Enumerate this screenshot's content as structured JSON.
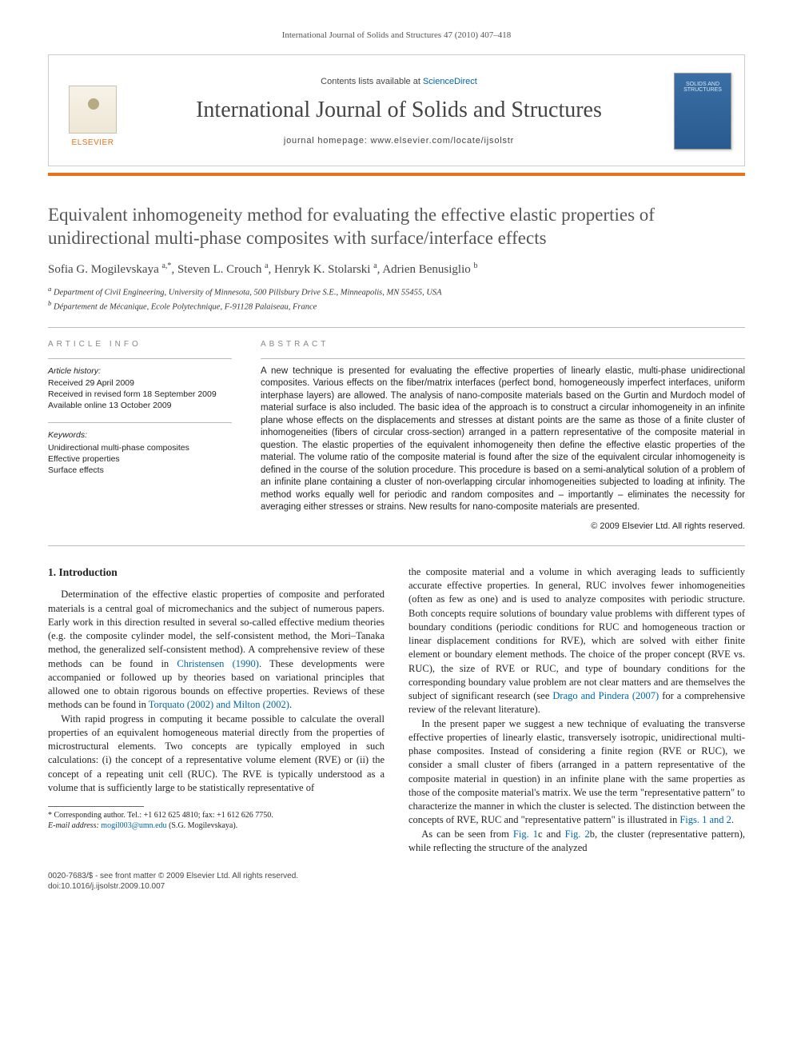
{
  "running_head": "International Journal of Solids and Structures 47 (2010) 407–418",
  "masthead": {
    "publisher_name": "ELSEVIER",
    "contents_prefix": "Contents lists available at ",
    "contents_link": "ScienceDirect",
    "journal_name": "International Journal of Solids and Structures",
    "homepage_prefix": "journal homepage: ",
    "homepage_url": "www.elsevier.com/locate/ijsolstr",
    "cover_text": "SOLIDS AND STRUCTURES"
  },
  "article": {
    "title": "Equivalent inhomogeneity method for evaluating the effective elastic properties of unidirectional multi-phase composites with surface/interface effects",
    "authors_html": "Sofia G. Mogilevskaya <sup>a,*</sup>, Steven L. Crouch <sup>a</sup>, Henryk K. Stolarski <sup>a</sup>, Adrien Benusiglio <sup>b</sup>",
    "affiliations": {
      "a": "Department of Civil Engineering, University of Minnesota, 500 Pillsbury Drive S.E., Minneapolis, MN 55455, USA",
      "b": "Département de Mécanique, Ecole Polytechnique, F-91128 Palaiseau, France"
    }
  },
  "meta": {
    "info_heading": "ARTICLE INFO",
    "history_label": "Article history:",
    "received": "Received 29 April 2009",
    "revised": "Received in revised form 18 September 2009",
    "online": "Available online 13 October 2009",
    "keywords_label": "Keywords:",
    "keywords": [
      "Unidirectional multi-phase composites",
      "Effective properties",
      "Surface effects"
    ],
    "abstract_heading": "ABSTRACT",
    "abstract": "A new technique is presented for evaluating the effective properties of linearly elastic, multi-phase unidirectional composites. Various effects on the fiber/matrix interfaces (perfect bond, homogeneously imperfect interfaces, uniform interphase layers) are allowed. The analysis of nano-composite materials based on the Gurtin and Murdoch model of material surface is also included. The basic idea of the approach is to construct a circular inhomogeneity in an infinite plane whose effects on the displacements and stresses at distant points are the same as those of a finite cluster of inhomogeneities (fibers of circular cross-section) arranged in a pattern representative of the composite material in question. The elastic properties of the equivalent inhomogeneity then define the effective elastic properties of the material. The volume ratio of the composite material is found after the size of the equivalent circular inhomogeneity is defined in the course of the solution procedure. This procedure is based on a semi-analytical solution of a problem of an infinite plane containing a cluster of non-overlapping circular inhomogeneities subjected to loading at infinity. The method works equally well for periodic and random composites and – importantly – eliminates the necessity for averaging either stresses or strains. New results for nano-composite materials are presented.",
    "copyright": "© 2009 Elsevier Ltd. All rights reserved."
  },
  "body": {
    "section_heading": "1. Introduction",
    "p1": "Determination of the effective elastic properties of composite and perforated materials is a central goal of micromechanics and the subject of numerous papers. Early work in this direction resulted in several so-called effective medium theories (e.g. the composite cylinder model, the self-consistent method, the Mori–Tanaka method, the generalized self-consistent method). A comprehensive review of these methods can be found in ",
    "christensen": "Christensen (1990)",
    "p1b": ". These developments were accompanied or followed up by theories based on variational principles that allowed one to obtain rigorous bounds on effective properties. Reviews of these methods can be found in ",
    "torquato": "Torquato (2002) and Milton (2002)",
    "p1c": ".",
    "p2": "With rapid progress in computing it became possible to calculate the overall properties of an equivalent homogeneous material directly from the properties of microstructural elements. Two concepts are typically employed in such calculations: (i) the concept of a representative volume element (RVE) or (ii) the concept of a repeating unit cell (RUC). The RVE is typically understood as a volume that is sufficiently large to be statistically representative of",
    "p3": "the composite material and a volume in which averaging leads to sufficiently accurate effective properties. In general, RUC involves fewer inhomogeneities (often as few as one) and is used to analyze composites with periodic structure. Both concepts require solutions of boundary value problems with different types of boundary conditions (periodic conditions for RUC and homogeneous traction or linear displacement conditions for RVE), which are solved with either finite element or boundary element methods. The choice of the proper concept (RVE vs. RUC), the size of RVE or RUC, and type of boundary conditions for the corresponding boundary value problem are not clear matters and are themselves the subject of significant research (see ",
    "drago": "Drago and Pindera (2007)",
    "p3b": " for a comprehensive review of the relevant literature).",
    "p4": "In the present paper we suggest a new technique of evaluating the transverse effective properties of linearly elastic, transversely isotropic, unidirectional multi-phase composites. Instead of considering a finite region (RVE or RUC), we consider a small cluster of fibers (arranged in a pattern representative of the composite material in question) in an infinite plane with the same properties as those of the composite material's matrix. We use the term \"representative pattern\" to characterize the manner in which the cluster is selected. The distinction between the concepts of RVE, RUC and \"representative pattern\" is illustrated in ",
    "figs12": "Figs. 1 and 2",
    "p4b": ".",
    "p5a": "As can be seen from ",
    "fig1c": "Fig. 1",
    "p5b": "c and ",
    "fig2b": "Fig. 2",
    "p5c": "b, the cluster (representative pattern), while reflecting the structure of the analyzed"
  },
  "footnote": {
    "corr_label": "* Corresponding author. Tel.: +1 612 625 4810; fax: +1 612 626 7750.",
    "email_label": "E-mail address:",
    "email": "mogil003@umn.edu",
    "email_person": " (S.G. Mogilevskaya)."
  },
  "footer": {
    "issn_line": "0020-7683/$ - see front matter © 2009 Elsevier Ltd. All rights reserved.",
    "doi_line": "doi:10.1016/j.ijsolstr.2009.10.007"
  },
  "colors": {
    "accent_orange": "#e9711c",
    "link_blue": "#0066aa",
    "heading_gray": "#555555",
    "rule_gray": "#bbbbbb"
  }
}
